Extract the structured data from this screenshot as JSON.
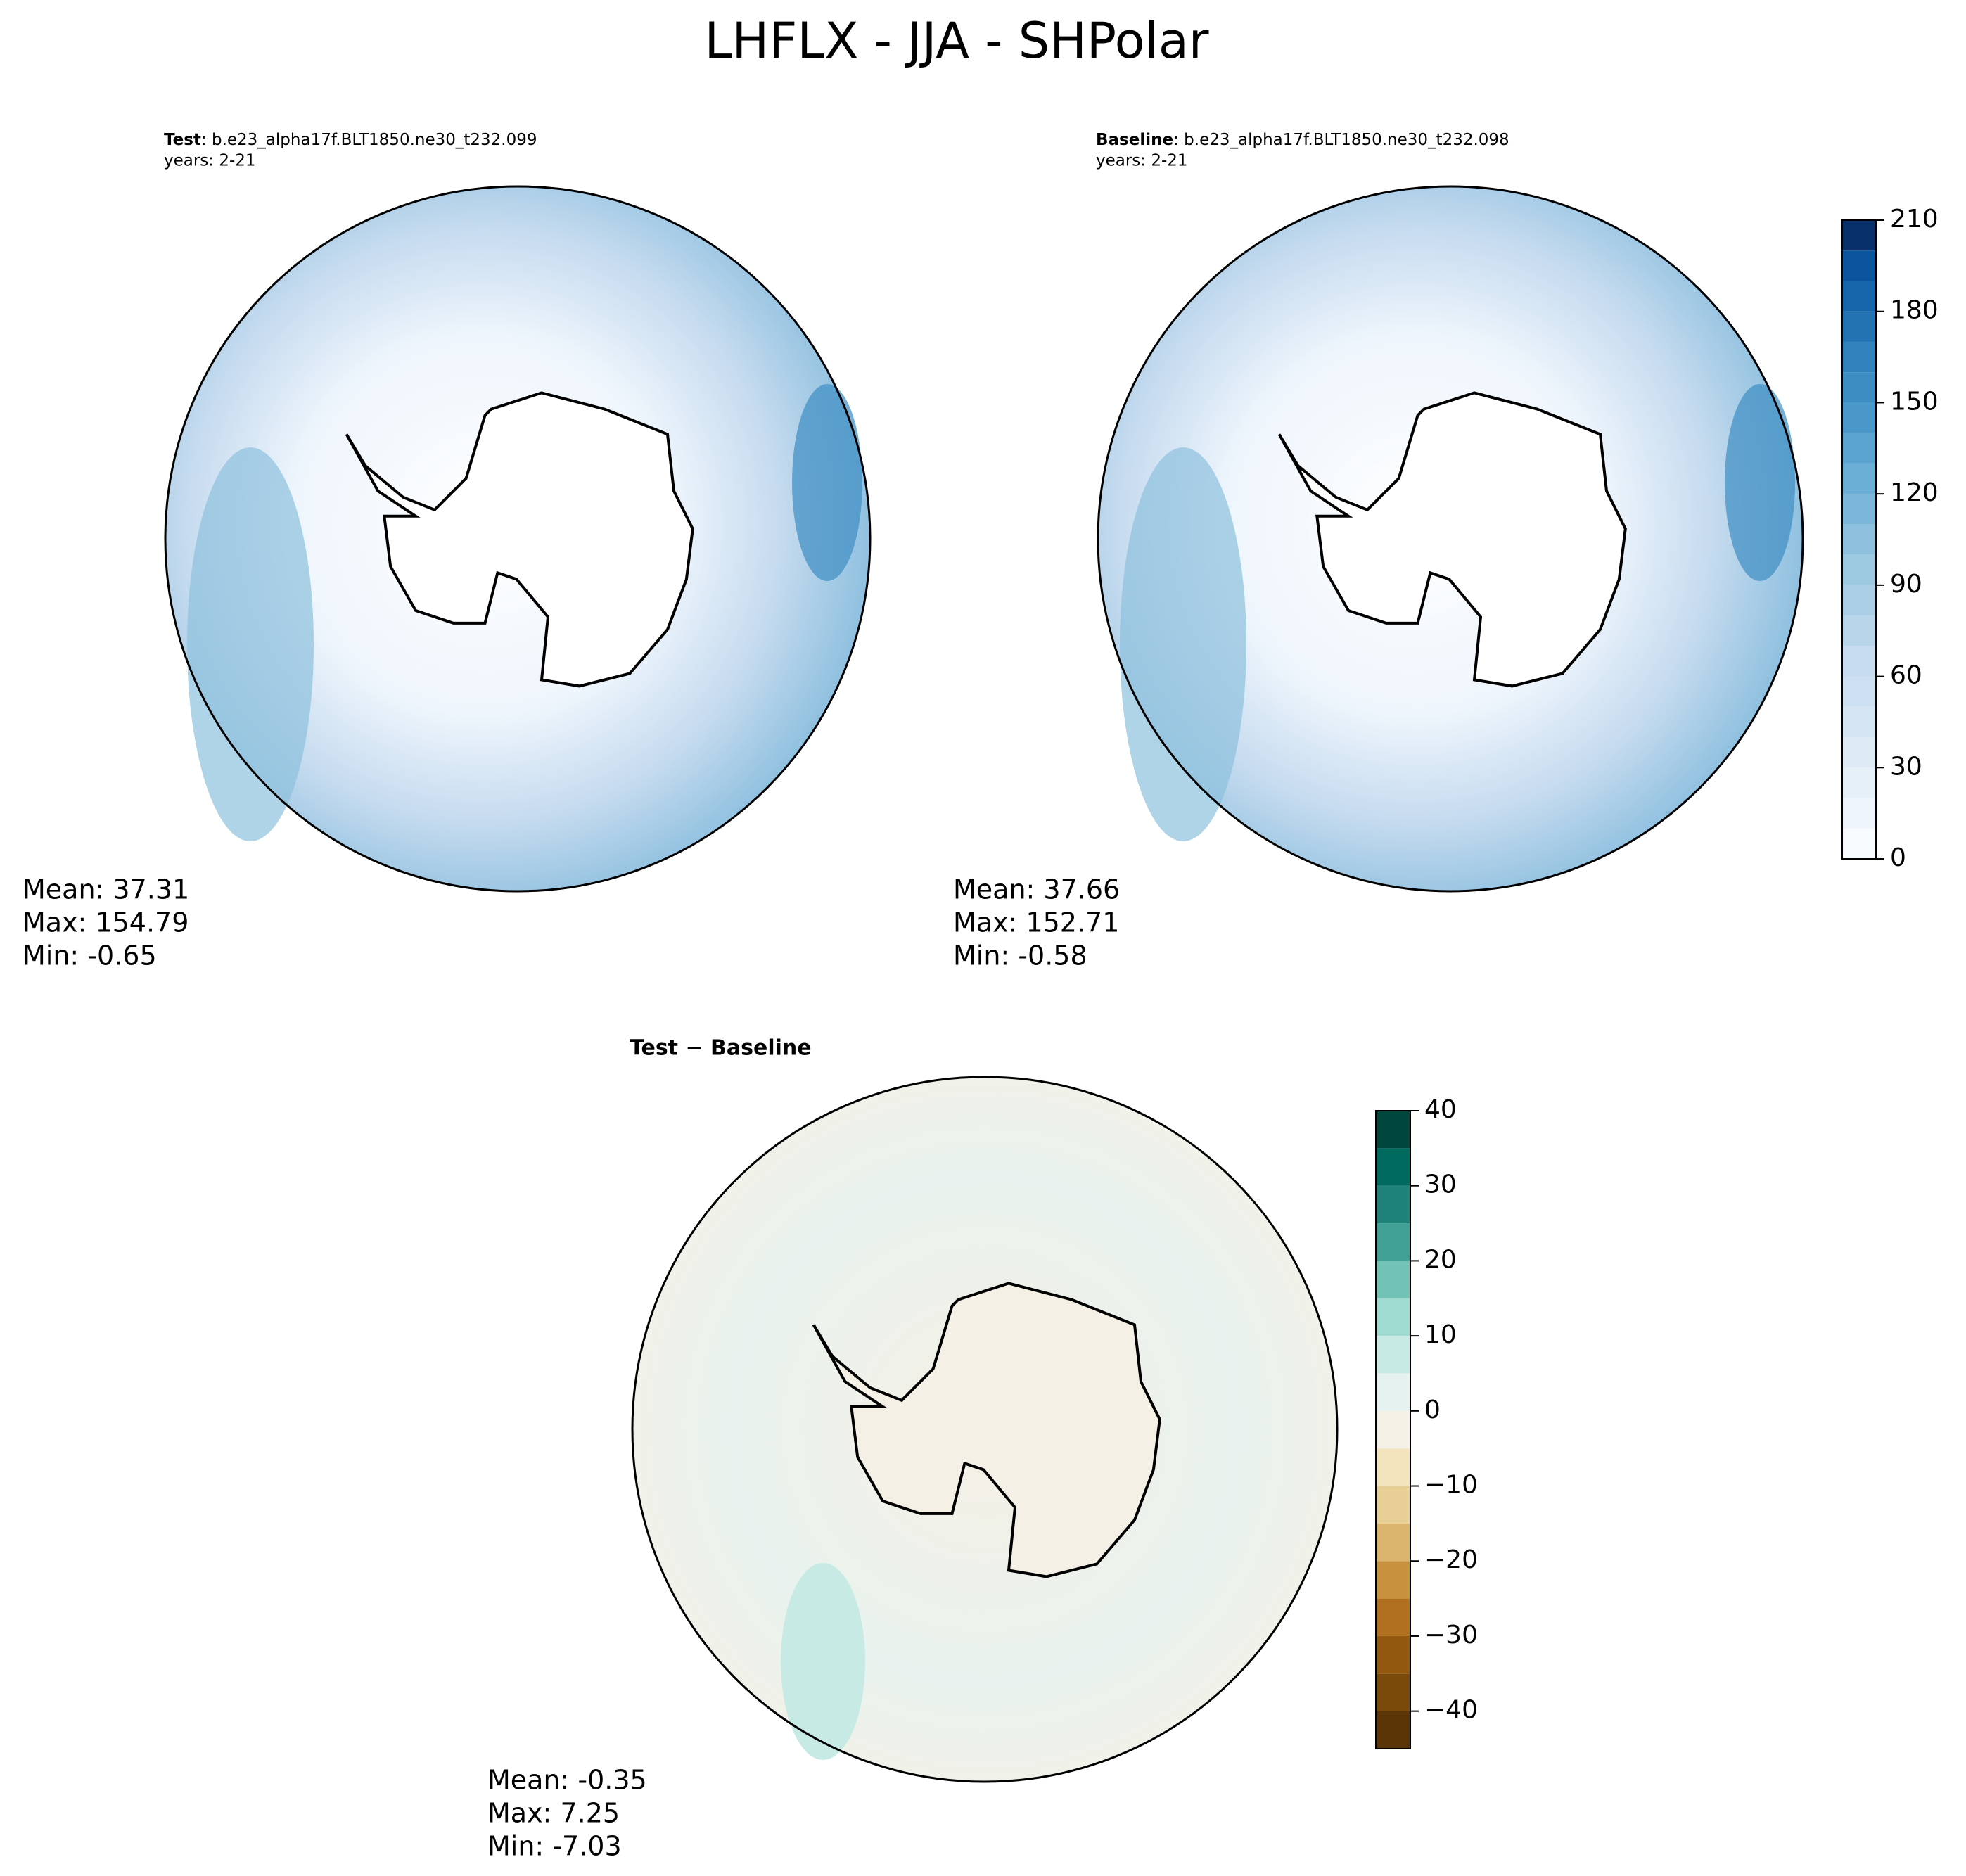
{
  "title": "LHFLX - JJA - SHPolar",
  "panels": [
    {
      "label": "Test",
      "name": ": b.e23_alpha17f.BLT1850.ne30_t232.099",
      "years": "years: 2-21",
      "stats": [
        "Mean: 37.31",
        "Max: 154.79",
        "Min: -0.65"
      ]
    },
    {
      "label": "Baseline",
      "name": ": b.e23_alpha17f.BLT1850.ne30_t232.098",
      "years": "years: 2-21",
      "stats": [
        "Mean: 37.66",
        "Max: 152.71",
        "Min: -0.58"
      ]
    },
    {
      "title": "Test − Baseline",
      "stats": [
        "Mean: -0.35",
        "Max:  7.25",
        "Min: -7.03"
      ]
    }
  ],
  "colorbars": [
    {
      "lim": [
        0,
        210
      ],
      "ticks": [
        0,
        30,
        60,
        90,
        120,
        150,
        180,
        210
      ],
      "levels": [
        0,
        10,
        20,
        30,
        40,
        50,
        60,
        70,
        80,
        90,
        100,
        110,
        120,
        130,
        140,
        150,
        160,
        170,
        180,
        190,
        200,
        210
      ],
      "colors": [
        "#f7fbff",
        "#eef5fc",
        "#e6f0f9",
        "#deebf7",
        "#d5e5f4",
        "#cde0f1",
        "#c6dbef",
        "#b9d5ea",
        "#abd0e6",
        "#9ecae1",
        "#8dc1dd",
        "#7cb7da",
        "#6baed6",
        "#5ba3d0",
        "#4a98c9",
        "#3d8dc3",
        "#3182bd",
        "#2373b3",
        "#1664aa",
        "#0b559f",
        "#08306b"
      ]
    },
    {
      "lim": [
        -45,
        40
      ],
      "ticks": [
        {
          "value": -40,
          "label": "−40"
        },
        {
          "value": -30,
          "label": "−30"
        },
        {
          "value": -20,
          "label": "−20"
        },
        {
          "value": -10,
          "label": "−10"
        },
        0,
        10,
        20,
        30,
        40
      ],
      "levels": [
        -45,
        -40,
        -35,
        -30,
        -25,
        -20,
        -15,
        -10,
        -5,
        0,
        5,
        10,
        15,
        20,
        25,
        30,
        35,
        40
      ],
      "colors": [
        "#5a3506",
        "#7a4a0a",
        "#93580f",
        "#b0701f",
        "#c8913e",
        "#dbb46d",
        "#e8cf95",
        "#f3e4bd",
        "#f5f0e5",
        "#e5f2ef",
        "#c7eae5",
        "#9fdbd0",
        "#73c2b6",
        "#40a095",
        "#1f8278",
        "#016a5e",
        "#01463c"
      ]
    }
  ]
}
